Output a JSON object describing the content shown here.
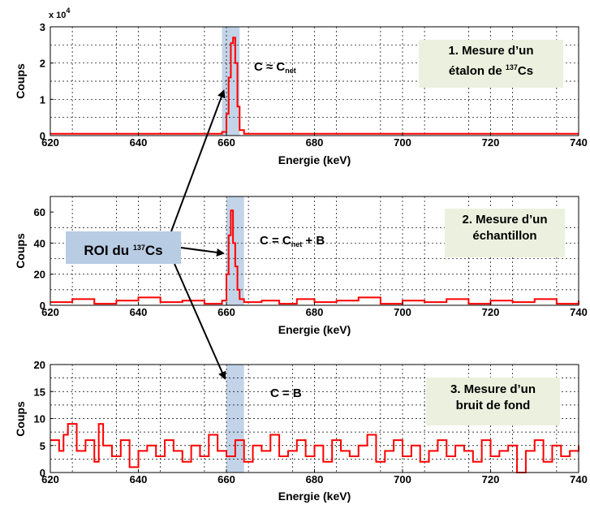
{
  "chart_data": [
    {
      "type": "line",
      "xlabel": "Energie (keV)",
      "ylabel": "Coups",
      "xlim": [
        620,
        740
      ],
      "ylim": [
        0,
        3
      ],
      "y_multiplier": "x 10",
      "y_multiplier_exp": "4",
      "xticks": [
        "620",
        "640",
        "660",
        "680",
        "700",
        "720",
        "740"
      ],
      "yticks": [
        "0",
        "1",
        "2",
        "3"
      ],
      "series": [
        {
          "color": "#ff0000",
          "x": [
            620,
            658,
            659,
            660,
            660.5,
            661,
            661.5,
            662,
            662.5,
            663,
            664,
            740
          ],
          "y": [
            0.05,
            0.05,
            0.1,
            0.6,
            1.6,
            2.55,
            2.7,
            2.0,
            0.8,
            0.15,
            0.05,
            0.05
          ]
        }
      ],
      "roi": [
        659,
        663
      ],
      "equation": {
        "main": "C ≈ C",
        "sub": "net",
        "rest": ""
      },
      "note": {
        "line1": "1. Mesure d’un",
        "line2_pre": "étalon de ",
        "line2_sup": "137",
        "line2_post": "Cs"
      }
    },
    {
      "type": "line",
      "xlabel": "Energie (keV)",
      "ylabel": "Coups",
      "xlim": [
        620,
        740
      ],
      "ylim": [
        0,
        70
      ],
      "xticks": [
        "620",
        "640",
        "660",
        "680",
        "700",
        "720",
        "740"
      ],
      "yticks": [
        "0",
        "20",
        "40",
        "60"
      ],
      "series": [
        {
          "color": "#ff0000",
          "x": [
            620,
            625,
            630,
            635,
            640,
            645,
            650,
            655,
            659,
            660,
            660.5,
            661,
            661.5,
            662,
            662.5,
            663,
            664,
            668,
            672,
            676,
            680,
            685,
            690,
            695,
            700,
            705,
            710,
            715,
            720,
            725,
            730,
            735,
            740
          ],
          "y": [
            2,
            4,
            1,
            3,
            5,
            2,
            3,
            1,
            3,
            20,
            45,
            61,
            40,
            25,
            10,
            4,
            2,
            3,
            1,
            4,
            2,
            3,
            5,
            1,
            3,
            2,
            4,
            1,
            3,
            2,
            4,
            1,
            3
          ]
        }
      ],
      "roi": [
        660,
        664
      ],
      "equation": {
        "main": "C = C",
        "sub": "net",
        "rest": " + B"
      },
      "note": {
        "line1": "2. Mesure d’un",
        "line2": "échantillon"
      }
    },
    {
      "type": "line",
      "xlabel": "Energie (keV)",
      "ylabel": "Coups",
      "xlim": [
        620,
        740
      ],
      "ylim": [
        0,
        20
      ],
      "xticks": [
        "620",
        "640",
        "660",
        "680",
        "700",
        "720",
        "740"
      ],
      "yticks": [
        "0",
        "5",
        "10",
        "15",
        "20"
      ],
      "series": [
        {
          "color": "#ff0000",
          "x": [
            620,
            622,
            623,
            624,
            626,
            628,
            630,
            631,
            632,
            634,
            636,
            638,
            640,
            642,
            644,
            646,
            648,
            650,
            652,
            654,
            656,
            658,
            660,
            662,
            664,
            666,
            668,
            670,
            672,
            674,
            676,
            678,
            680,
            682,
            684,
            686,
            688,
            690,
            692,
            694,
            696,
            698,
            700,
            702,
            704,
            706,
            708,
            710,
            712,
            714,
            716,
            718,
            720,
            722,
            724,
            726,
            728,
            730,
            732,
            734,
            736,
            738,
            740
          ],
          "y": [
            6,
            4,
            7,
            9,
            4,
            6,
            2,
            9,
            5,
            3,
            6,
            1,
            4,
            5,
            3,
            6,
            4,
            2,
            5,
            3,
            7,
            4,
            3,
            6,
            2,
            5,
            4,
            7,
            3,
            4,
            6,
            3,
            5,
            2,
            6,
            4,
            3,
            5,
            7,
            2,
            4,
            6,
            3,
            5,
            2,
            4,
            6,
            3,
            5,
            4,
            2,
            6,
            3,
            4,
            5,
            0,
            4,
            6,
            2,
            5,
            3,
            4,
            5
          ]
        }
      ],
      "roi": [
        660,
        664
      ],
      "equation": {
        "main": "C = B",
        "sub": "",
        "rest": ""
      },
      "note": {
        "line1": "3. Mesure d’un",
        "line2": "bruit de fond"
      }
    }
  ],
  "roi_label": {
    "pre": "ROI du ",
    "sup": "137",
    "post": "Cs"
  }
}
